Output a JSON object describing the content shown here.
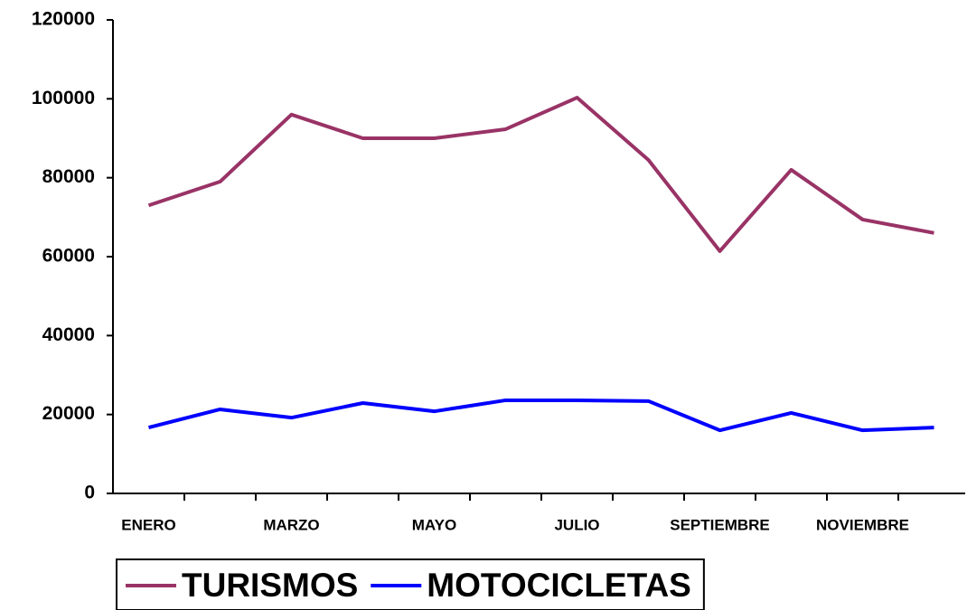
{
  "chart_data": {
    "type": "line",
    "categories": [
      "ENERO",
      null,
      "MARZO",
      null,
      "MAYO",
      null,
      "JULIO",
      null,
      "SEPTIEMBRE",
      null,
      "NOVIEMBRE",
      null
    ],
    "series": [
      {
        "name": "TURISMOS",
        "color": "#993366",
        "values": [
          73000,
          79000,
          96000,
          90000,
          90000,
          92300,
          100300,
          84500,
          61400,
          82000,
          69400,
          66000
        ]
      },
      {
        "name": "MOTOCICLETAS",
        "color": "#0000ff",
        "values": [
          16700,
          21300,
          19200,
          22900,
          20800,
          23600,
          23600,
          23400,
          16000,
          20400,
          16000,
          16700
        ]
      }
    ],
    "ylim": [
      0,
      120000
    ],
    "yticks": [
      0,
      20000,
      40000,
      60000,
      80000,
      100000,
      120000
    ],
    "grid": false,
    "legend": "bottom"
  }
}
